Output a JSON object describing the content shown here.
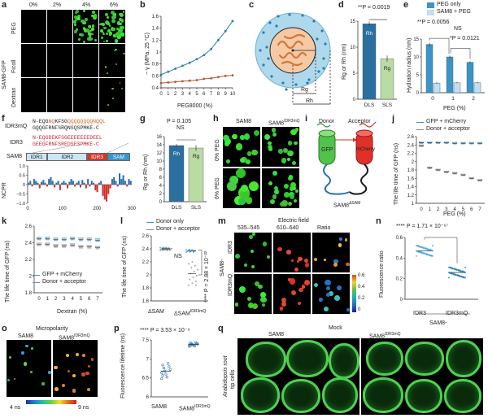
{
  "panel_a": {
    "label": "a",
    "columns": [
      "0%",
      "2%",
      "4%",
      "6%"
    ],
    "rows": [
      "PEG",
      "Ficoll",
      "Dextran"
    ],
    "side": "SAM8-GFP"
  },
  "panel_b": {
    "label": "b",
    "chart_data": {
      "type": "line",
      "xlabel": "PEG8000 (%)",
      "ylabel": "− γ (MPa, 25 °C)",
      "x": [
        0,
        1,
        2,
        3,
        4,
        5,
        6,
        7,
        8,
        9,
        10
      ],
      "xlim": [
        0,
        10
      ],
      "ylim": [
        0.4,
        1.6
      ],
      "yticks": [
        0.4,
        0.6,
        0.8,
        1.0,
        1.2,
        1.4,
        1.6
      ],
      "series": [
        {
          "color": "#2a7fa6",
          "values": [
            0.62,
            0.67,
            0.72,
            0.77,
            0.82,
            0.88,
            0.95,
            1.05,
            1.2,
            1.35,
            1.52
          ]
        },
        {
          "color": "#b9553b",
          "values": [
            0.48,
            0.49,
            0.5,
            0.51,
            0.52,
            0.53,
            0.55,
            0.56,
            0.58,
            0.6,
            0.61
          ]
        }
      ]
    }
  },
  "panel_c": {
    "label": "c",
    "rg": "Rg",
    "rh": "Rh"
  },
  "panel_d": {
    "label": "d",
    "p_text": "**P = 0.0019",
    "chart_data": {
      "type": "bar",
      "categories": [
        "DLS",
        "SLS"
      ],
      "values": [
        14.5,
        7.8
      ],
      "errors": [
        0.4,
        0.6
      ],
      "bar_labels": [
        "Rh",
        "Rg"
      ],
      "ylabel": "Rg or Rh (nm)",
      "ylim": [
        0,
        15
      ],
      "yticks": [
        0,
        5,
        10,
        15
      ]
    }
  },
  "panel_e": {
    "label": "e",
    "legend": [
      "PEG only",
      "SAM8 + PEG"
    ],
    "p1": "**P = 0.0056",
    "p2": "NS",
    "p3": "*P = 0.0121",
    "chart_data": {
      "type": "bar",
      "categories": [
        "0",
        "1",
        "2"
      ],
      "xlabel": "PEG (%)",
      "ylabel": "Hydration radius (nm)",
      "ylim": [
        0,
        15
      ],
      "yticks": [
        0,
        5,
        10,
        15
      ],
      "series": [
        {
          "name": "PEG only",
          "color": "#3b94c8",
          "values": [
            13.5,
            10.0,
            8.5
          ],
          "errors": [
            0.5,
            0.4,
            0.3
          ]
        },
        {
          "name": "SAM8 + PEG",
          "color": "#bde0f2",
          "values": [
            2.7,
            2.8,
            2.8
          ],
          "errors": [
            0.2,
            0.2,
            0.2
          ]
        }
      ]
    }
  },
  "panel_f": {
    "label": "f",
    "seq_top_left": "N-EQG",
    "seq_top_mid": "NQ",
    "seq_top_mid2": "KFSG",
    "seq_top_right": "QQQQQQQQNQQL",
    "seq_top2": "GQQGFRNFSRQNSQSPMKE-C",
    "row1": "IDR3mQ",
    "row2": "IDR3",
    "seq_bot1": "N-EQGDEKFSGEEEEEEEDEEL",
    "seq_bot2": "GEEGFRNFSREDSESPMKE-C",
    "domain_label": "SAM8",
    "domains": [
      "IDR1",
      "IDR2",
      "IDR3",
      "SAM"
    ],
    "ylabel": "NCPR",
    "xticks": [
      "0",
      "100",
      "200",
      "300"
    ],
    "yticks": [
      "1.0",
      "0.5",
      "0",
      "−0.5",
      "−1.0"
    ]
  },
  "panel_g": {
    "label": "g",
    "p_text": "P = 0.105",
    "ns": "NS",
    "chart_data": {
      "type": "bar",
      "categories": [
        "DLS",
        "SLS"
      ],
      "values": [
        13.8,
        13.2
      ],
      "errors": [
        0.4,
        0.7
      ],
      "bar_labels": [
        "Rh",
        "Rg"
      ],
      "ylabel": "Rg or Rh (nm)",
      "ylim": [
        0,
        16
      ],
      "yticks": [
        0,
        2,
        4,
        6,
        8,
        10,
        12,
        14,
        16
      ]
    }
  },
  "panel_h": {
    "label": "h",
    "cols": [
      "SAM8",
      "SAM8IDR3mQ"
    ],
    "col2_base": "SAM8",
    "col2_sup": "IDR3mQ",
    "rows": [
      "0% PEG",
      "6% PEG"
    ]
  },
  "panel_i": {
    "label": "i",
    "donor": "Donor",
    "acceptor": "Acceptor",
    "gfp": "GFP",
    "mcherry": "mCherry",
    "construct_base": "SAM8",
    "construct_sup": "ΔSAM"
  },
  "panel_j": {
    "label": "j",
    "legend": [
      "GFP + mCherry",
      "Donor + acceptor"
    ],
    "chart_data": {
      "type": "scatter",
      "xlabel": "PEG (%)",
      "ylabel": "The life time of GFP (ns)",
      "ylim": [
        1.0,
        2.6
      ],
      "yticks": [
        1.0,
        1.2,
        1.4,
        1.6,
        1.8,
        2.0,
        2.2,
        2.4,
        2.6
      ],
      "x": [
        0,
        1,
        2,
        3,
        4,
        5,
        6,
        7
      ],
      "series": [
        {
          "name": "GFP + mCherry",
          "values": [
            2.45,
            2.45,
            2.45,
            2.45,
            2.44,
            2.44,
            2.44,
            2.44
          ]
        },
        {
          "name": "Donor + acceptor",
          "values": [
            2.38,
            1.85,
            1.8,
            1.75,
            1.72,
            1.68,
            1.6,
            1.55
          ]
        }
      ]
    }
  },
  "panel_k": {
    "label": "k",
    "legend": [
      "GFP + mCherry",
      "Donor + acceptor"
    ],
    "chart_data": {
      "type": "scatter",
      "xlabel": "Dextran (%)",
      "ylabel": "The life time of GFP (ns)",
      "ylim": [
        1.8,
        2.6
      ],
      "yticks": [
        1.8,
        2.0,
        2.2,
        2.4,
        2.6
      ],
      "x": [
        0,
        1,
        2,
        3,
        4,
        5,
        6,
        7
      ],
      "series": [
        {
          "name": "GFP + mCherry",
          "values": [
            2.45,
            2.45,
            2.44,
            2.44,
            2.45,
            2.44,
            2.44,
            2.43
          ]
        },
        {
          "name": "Donor + acceptor",
          "values": [
            2.38,
            2.38,
            2.36,
            2.36,
            2.37,
            2.35,
            2.35,
            2.34
          ]
        }
      ]
    }
  },
  "panel_l": {
    "label": "l",
    "legend": [
      "Donor only",
      "Donor + acceptor"
    ],
    "ns": "NS",
    "p_text": "**** P = 2.88 × 10⁻²²",
    "x1": "ΔSAM",
    "x2_base": "ΔSAM",
    "x2_sup": "IDR3mQ",
    "chart_data": {
      "type": "scatter",
      "ylabel": "The life time of GFP (ns)",
      "ylim": [
        1.6,
        2.6
      ],
      "yticks": [
        1.6,
        1.8,
        2.0,
        2.2,
        2.4,
        2.6
      ],
      "categories": [
        "ΔSAM",
        "ΔSAMIDR3mQ"
      ],
      "series": [
        {
          "name": "Donor only",
          "values": [
            2.4,
            2.37
          ]
        },
        {
          "name": "Donor + acceptor",
          "values": [
            2.4,
            2.02
          ]
        }
      ]
    }
  },
  "panel_m": {
    "label": "m",
    "title": "Electric field",
    "cols": [
      "535–545",
      "610–640",
      "Ratio"
    ],
    "rows": [
      "IDR3",
      "IDR3mQ"
    ],
    "side": "SAM8-",
    "scale": [
      "0",
      "0.2",
      "0.4",
      "0.6"
    ]
  },
  "panel_n": {
    "label": "n",
    "p_text": "**** P = 1.71 × 10⁻⁶⁷",
    "chart_data": {
      "type": "scatter",
      "categories": [
        "IDR3",
        "IDR3mQ"
      ],
      "ylabel": "Fluorescence ratio",
      "ylim": [
        0,
        0.6
      ],
      "yticks": [
        0,
        0.2,
        0.4,
        0.6
      ],
      "values": [
        0.47,
        0.26
      ]
    },
    "group": "SAM8-"
  },
  "panel_o": {
    "label": "o",
    "title": "Micropolarity",
    "cols": [
      "SAM8",
      "SAM8IDR3mQ"
    ],
    "col2_base": "SAM8",
    "col2_sup": "IDR3mQ",
    "scale_left": "4 ns",
    "scale_right": "9 ns"
  },
  "panel_p": {
    "label": "p",
    "p_text": "**** P = 3.53 × 10⁻⁹",
    "x1": "SAM8",
    "x2_base": "SAM8",
    "x2_sup": "IDR3mQ",
    "chart_data": {
      "type": "scatter",
      "categories": [
        "SAM8",
        "SAM8IDR3mQ"
      ],
      "ylabel": "Fluorescence lifetime (ns)",
      "ylim": [
        6.0,
        7.5
      ],
      "yticks": [
        6.0,
        6.5,
        7.0,
        7.5
      ],
      "values": [
        6.68,
        7.38
      ]
    }
  },
  "panel_q": {
    "label": "q",
    "title": "Mock",
    "cols": [
      "SAM8",
      "SAM8IDR3mQ"
    ],
    "col2_base": "SAM8",
    "col2_sup": "IDR3mQ",
    "side1": "Arabidopsis root",
    "side2": "tip cells"
  }
}
